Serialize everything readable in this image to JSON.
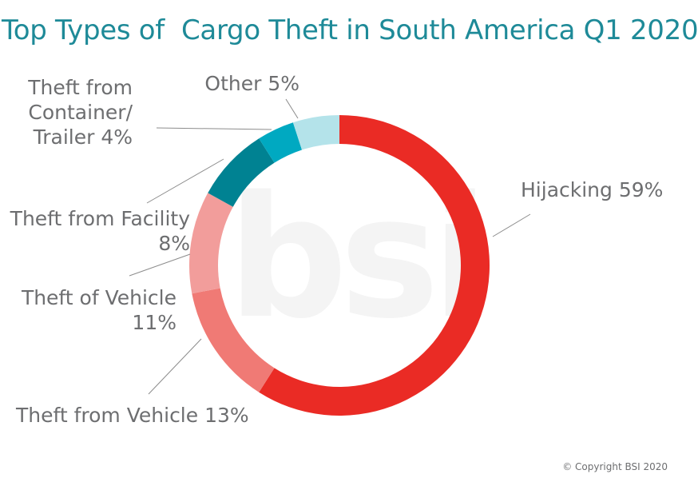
{
  "title": "Top Types of  Cargo Theft in South America Q1 2020",
  "copyright": "© Copyright BSI 2020",
  "watermark": "bsi",
  "chart_data": {
    "type": "pie",
    "donut": true,
    "title": "Top Types of  Cargo Theft in South America Q1 2020",
    "slices": [
      {
        "label_lines": [
          "Hijacking 59%"
        ],
        "value": 59,
        "color": "#ea2b25"
      },
      {
        "label_lines": [
          "Theft from Vehicle 13%"
        ],
        "value": 13,
        "color": "#f07a75"
      },
      {
        "label_lines": [
          "Theft of Vehicle",
          "11%"
        ],
        "value": 11,
        "color": "#f29d9b"
      },
      {
        "label_lines": [
          "Theft from Facility",
          "8%"
        ],
        "value": 8,
        "color": "#008292"
      },
      {
        "label_lines": [
          "Theft from",
          "Container/",
          "Trailer 4%"
        ],
        "value": 4,
        "color": "#00a9c1"
      },
      {
        "label_lines": [
          "Other 5%"
        ],
        "value": 5,
        "color": "#b4e3ea"
      }
    ]
  }
}
